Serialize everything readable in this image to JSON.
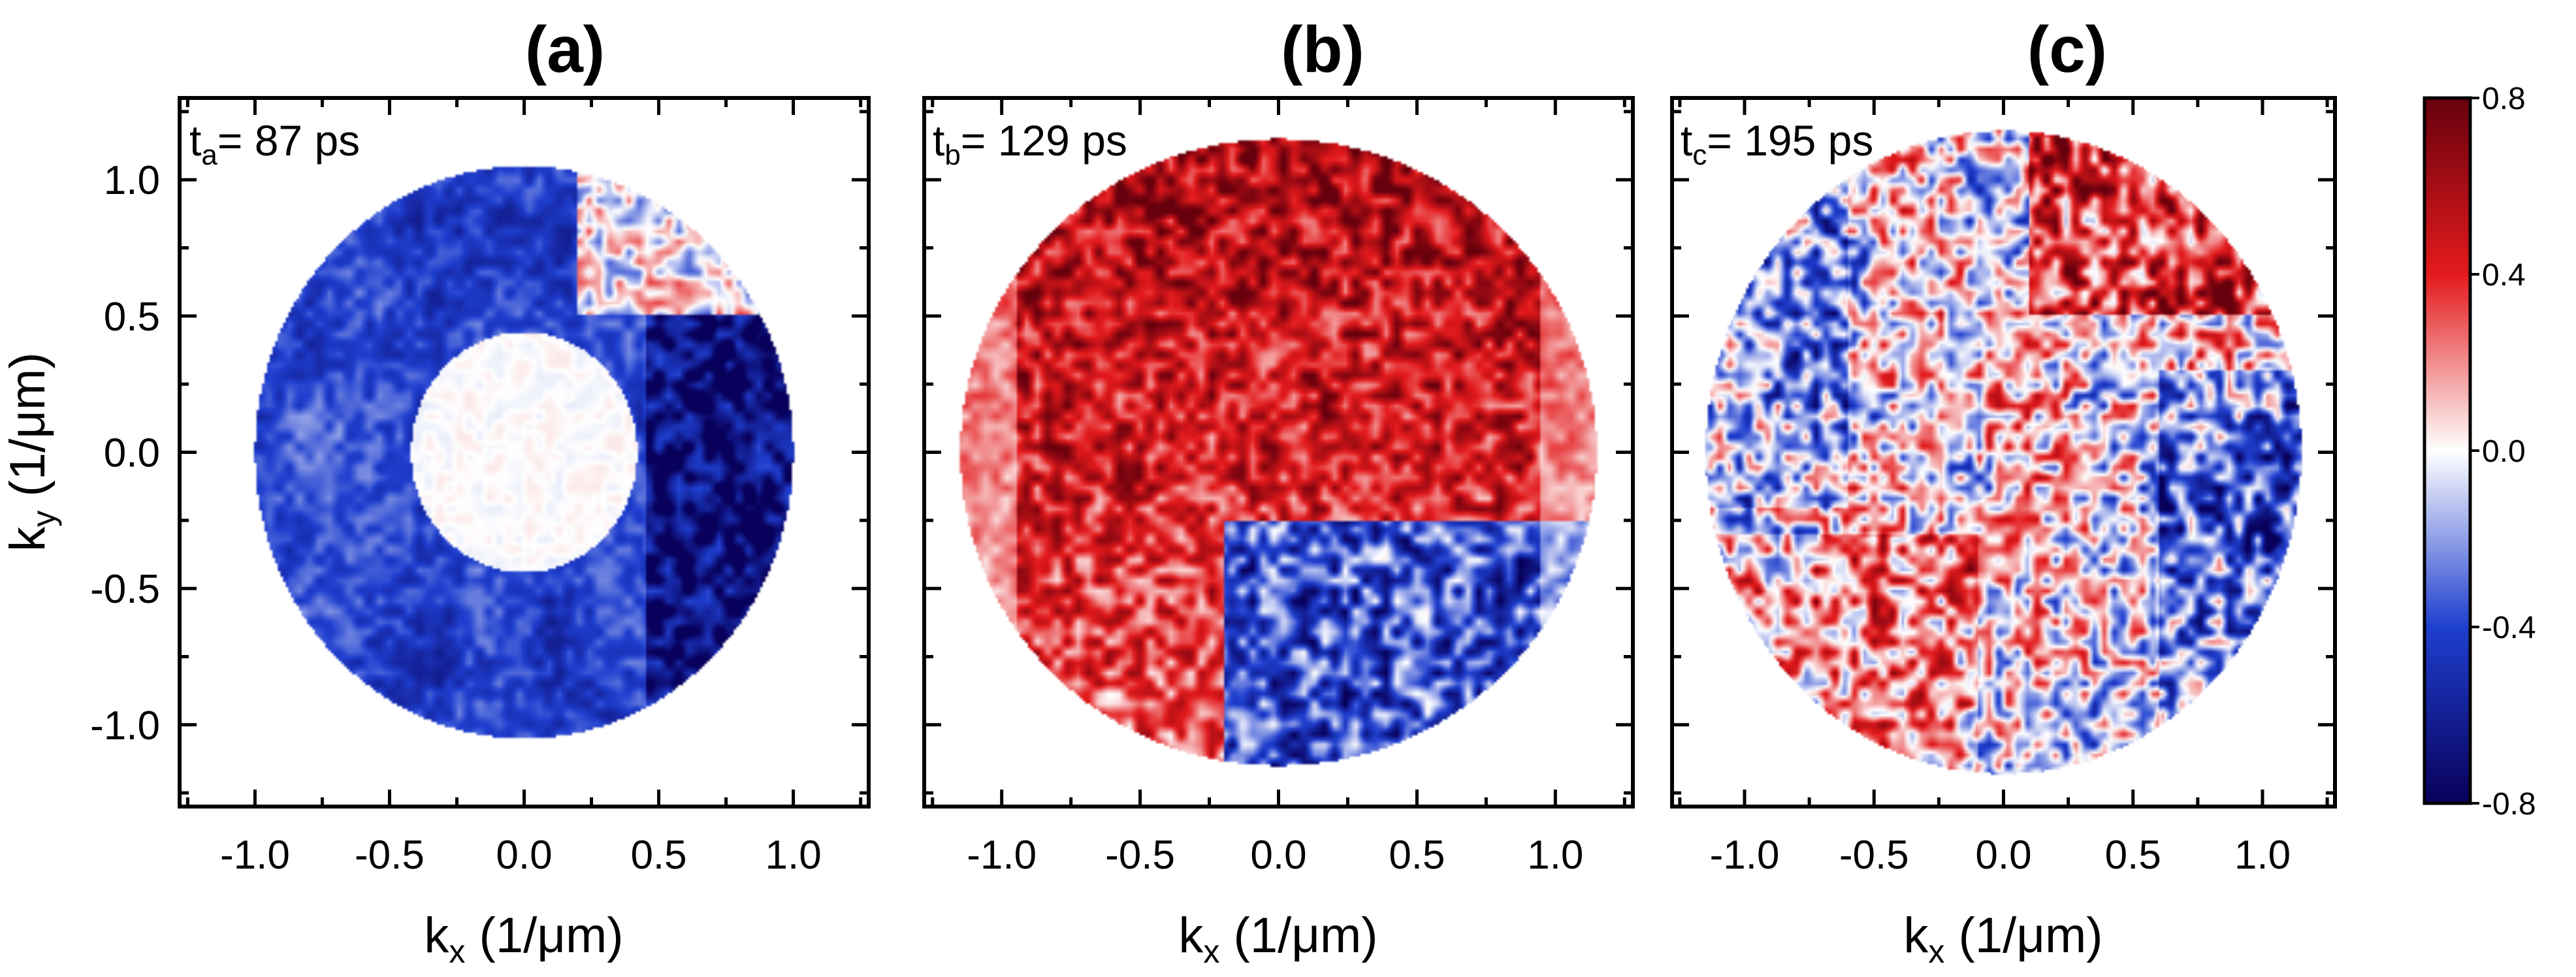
{
  "chart_data": [
    {
      "type": "heatmap",
      "title": "(a)",
      "annotation": {
        "t_symbol": "t",
        "t_subscript": "a",
        "t_value": "= 87 ps"
      },
      "xlabel": {
        "main": "k",
        "sub": "x",
        "unit": " (1/μm)"
      },
      "ylabel": {
        "main": "k",
        "sub": "y",
        "unit": " (1/μm)"
      },
      "xlim": [
        -1.28,
        1.28
      ],
      "ylim": [
        -1.3,
        1.3
      ],
      "xticks": [
        -1.0,
        -0.5,
        0.0,
        0.5,
        1.0
      ],
      "yticks": [
        -1.0,
        -0.5,
        0.0,
        0.5,
        1.0
      ],
      "xtick_labels": [
        "-1.0",
        "-0.5",
        "0.0",
        "0.5",
        "1.0"
      ],
      "ytick_labels": [
        "-1.0",
        "-0.5",
        "0.0",
        "0.5",
        "1.0"
      ],
      "pattern": "ring",
      "description_values": {
        "outer_radius": 1.05,
        "inner_radius": 0.45,
        "ring_value": -0.55,
        "right_side_value": -0.7,
        "center_value": 0.0
      }
    },
    {
      "type": "heatmap",
      "title": "(b)",
      "annotation": {
        "t_symbol": "t",
        "t_subscript": "b",
        "t_value": "= 129 ps"
      },
      "xlabel": {
        "main": "k",
        "sub": "x",
        "unit": " (1/μm)"
      },
      "xlim": [
        -1.28,
        1.28
      ],
      "ylim": [
        -1.3,
        1.3
      ],
      "xticks": [
        -1.0,
        -0.5,
        0.0,
        0.5,
        1.0
      ],
      "xtick_labels": [
        "-1.0",
        "-0.5",
        "0.0",
        "0.5",
        "1.0"
      ],
      "pattern": "mostly-positive",
      "description_values": {
        "upper_value": 0.6,
        "lower_right_value": -0.4,
        "radius": 1.2
      }
    },
    {
      "type": "heatmap",
      "title": "(c)",
      "annotation": {
        "t_symbol": "t",
        "t_subscript": "c",
        "t_value": "= 195 ps"
      },
      "xlabel": {
        "main": "k",
        "sub": "x",
        "unit": " (1/μm)"
      },
      "xlim": [
        -1.28,
        1.28
      ],
      "ylim": [
        -1.3,
        1.3
      ],
      "xticks": [
        -1.0,
        -0.5,
        0.0,
        0.5,
        1.0
      ],
      "xtick_labels": [
        "-1.0",
        "-0.5",
        "0.0",
        "0.5",
        "1.0"
      ],
      "pattern": "mixed",
      "description_values": {
        "upper_right_value": 0.6,
        "lower_left_value": 0.4,
        "right_value": -0.4,
        "radius": 1.2
      }
    }
  ],
  "colorbar": {
    "range": [
      -0.8,
      0.8
    ],
    "tick_labels": [
      "0.8",
      "0.4",
      "0.0",
      "-0.4",
      "-0.8"
    ],
    "colors": {
      "max": "#67000d",
      "high": "#e31a1c",
      "zero": "#ffffff",
      "low": "#1f3fcf",
      "min": "#08005a"
    }
  }
}
